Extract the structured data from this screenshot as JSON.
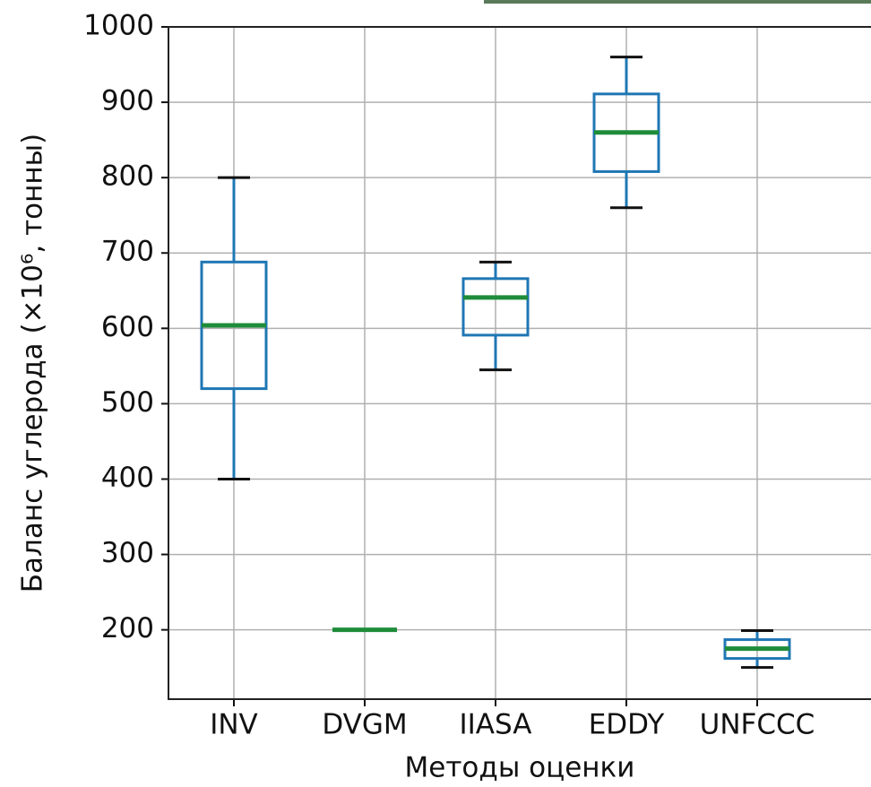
{
  "chart_data": {
    "type": "box",
    "x_label": "Методы оценки",
    "y_label": "Баланс углерода (×10⁶, тонны)",
    "categories": [
      "INV",
      "DVGM",
      "IIASA",
      "EDDY",
      "UNFCCC"
    ],
    "boxes": [
      {
        "whislo": 400,
        "q1": 520,
        "med": 604,
        "q3": 688,
        "whishi": 800
      },
      {
        "whislo": 200,
        "q1": 200,
        "med": 200,
        "q3": 200,
        "whishi": 200
      },
      {
        "whislo": 545,
        "q1": 591,
        "med": 641,
        "q3": 666,
        "whishi": 688
      },
      {
        "whislo": 760,
        "q1": 808,
        "med": 860,
        "q3": 911,
        "whishi": 960
      },
      {
        "whislo": 150,
        "q1": 162,
        "med": 175,
        "q3": 187,
        "whishi": 199
      }
    ],
    "box_color": "#1f77b4",
    "median_color": "#1e8c3a",
    "cap_color": "#111111",
    "ylim": [
      108,
      1000
    ],
    "yticks": [
      200,
      300,
      400,
      500,
      600,
      700,
      800,
      900,
      1000
    ],
    "grid": true
  }
}
